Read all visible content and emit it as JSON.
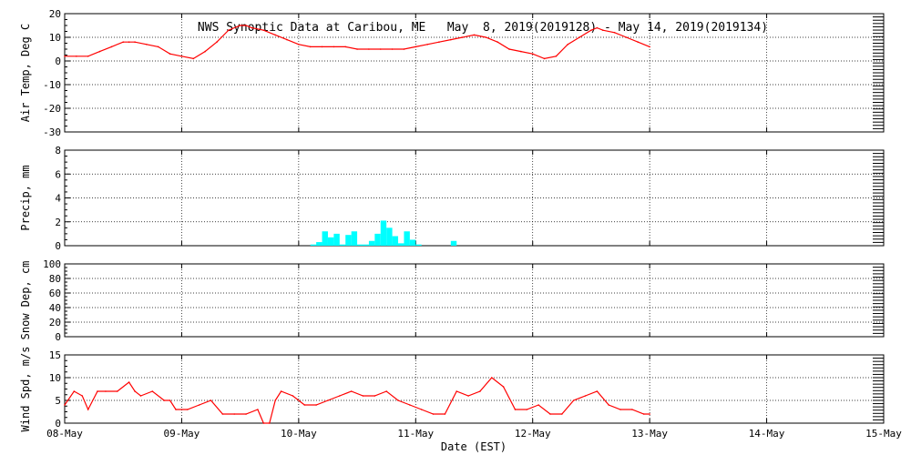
{
  "chart_data": {
    "type": "line",
    "title": "NWS Synoptic Data at Caribou, ME   May  8, 2019(2019128) - May 14, 2019(2019134)",
    "xlabel": "Date (EST)",
    "x_ticks": [
      "08-May",
      "09-May",
      "10-May",
      "11-May",
      "12-May",
      "13-May",
      "14-May",
      "15-May"
    ],
    "x_unit": "days since 08-May 00:00",
    "panels": [
      {
        "id": "air_temp",
        "type": "line",
        "ylabel": "Air Temp, Deg C",
        "ylim": [
          -30,
          20
        ],
        "yticks": [
          -30,
          -20,
          -10,
          0,
          10,
          20
        ],
        "color": "#ff0000",
        "x": [
          0.0,
          0.1,
          0.2,
          0.3,
          0.4,
          0.5,
          0.55,
          0.6,
          0.7,
          0.8,
          0.9,
          1.0,
          1.1,
          1.2,
          1.3,
          1.4,
          1.5,
          1.55,
          1.6,
          1.7,
          1.8,
          1.9,
          2.0,
          2.1,
          2.2,
          2.3,
          2.4,
          2.5,
          2.6,
          2.7,
          2.8,
          2.9,
          3.0,
          3.1,
          3.2,
          3.3,
          3.4,
          3.5,
          3.6,
          3.7,
          3.8,
          3.9,
          4.0,
          4.1,
          4.2,
          4.3,
          4.4,
          4.5,
          4.55,
          4.6,
          4.7,
          4.8,
          4.9,
          5.0
        ],
        "values": [
          2,
          2,
          2,
          4,
          6,
          8,
          8,
          8,
          7,
          6,
          3,
          2,
          1,
          4,
          8,
          13,
          15,
          15,
          14,
          13,
          11,
          9,
          7,
          6,
          6,
          6,
          6,
          5,
          5,
          5,
          5,
          5,
          6,
          7,
          8,
          9,
          10,
          11,
          10,
          8,
          5,
          4,
          3,
          1,
          2,
          7,
          10,
          13,
          14,
          13,
          12,
          10,
          8,
          6
        ]
      },
      {
        "id": "precip",
        "type": "bar",
        "ylabel": "Precip, mm",
        "ylim": [
          0,
          8
        ],
        "yticks": [
          0,
          2,
          4,
          6,
          8
        ],
        "color": "#00ffff",
        "x": [
          2.1,
          2.15,
          2.2,
          2.25,
          2.3,
          2.35,
          2.4,
          2.45,
          2.5,
          2.55,
          2.6,
          2.65,
          2.7,
          2.75,
          2.8,
          2.85,
          2.9,
          2.95,
          3.0,
          3.3
        ],
        "values": [
          0.1,
          0.3,
          1.2,
          0.7,
          1.0,
          0.1,
          0.9,
          1.2,
          0.1,
          0.1,
          0.4,
          1.0,
          2.1,
          1.5,
          0.8,
          0.2,
          1.2,
          0.5,
          0.1,
          0.4
        ],
        "bar_width": 0.05
      },
      {
        "id": "snow_depth",
        "type": "line",
        "ylabel": "Snow Dep, cm",
        "ylim": [
          0,
          100
        ],
        "yticks": [
          0,
          20,
          40,
          60,
          80,
          100
        ],
        "color": "#ff0000",
        "x": [],
        "values": []
      },
      {
        "id": "wind_speed",
        "type": "line",
        "ylabel": "Wind Spd, m/s",
        "ylim": [
          0,
          15
        ],
        "yticks": [
          0,
          5,
          10,
          15
        ],
        "color": "#ff0000",
        "x": [
          0.0,
          0.08,
          0.15,
          0.2,
          0.28,
          0.35,
          0.45,
          0.55,
          0.6,
          0.65,
          0.75,
          0.85,
          0.9,
          0.95,
          1.05,
          1.15,
          1.25,
          1.35,
          1.45,
          1.55,
          1.65,
          1.7,
          1.75,
          1.8,
          1.85,
          1.95,
          2.05,
          2.15,
          2.25,
          2.35,
          2.45,
          2.55,
          2.65,
          2.75,
          2.85,
          2.95,
          3.05,
          3.15,
          3.25,
          3.35,
          3.45,
          3.55,
          3.65,
          3.75,
          3.85,
          3.95,
          4.05,
          4.15,
          4.25,
          4.35,
          4.45,
          4.55,
          4.65,
          4.75,
          4.85,
          4.95,
          5.0
        ],
        "values": [
          4,
          7,
          6,
          3,
          7,
          7,
          7,
          9,
          7,
          6,
          7,
          5,
          5,
          3,
          3,
          4,
          5,
          2,
          2,
          2,
          3,
          0,
          0,
          5,
          7,
          6,
          4,
          4,
          5,
          6,
          7,
          6,
          6,
          7,
          5,
          4,
          3,
          2,
          2,
          7,
          6,
          7,
          10,
          8,
          3,
          3,
          4,
          2,
          2,
          5,
          6,
          7,
          4,
          3,
          3,
          2,
          2
        ]
      }
    ]
  }
}
